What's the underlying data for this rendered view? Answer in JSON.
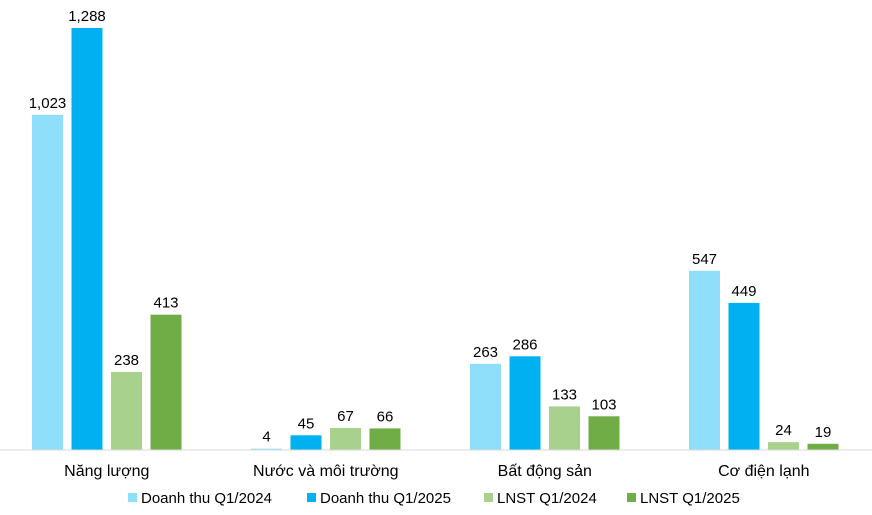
{
  "chart_data": {
    "type": "bar",
    "categories": [
      "Năng lượng",
      "Nước và môi trường",
      "Bất động sản",
      "Cơ điện lạnh"
    ],
    "series": [
      {
        "name": "Doanh thu Q1/2024",
        "color": "#8fdffb",
        "values": [
          1023,
          4,
          263,
          547
        ],
        "labels": [
          "1,023",
          "4",
          "263",
          "547"
        ]
      },
      {
        "name": "Doanh thu Q1/2025",
        "color": "#00b0f0",
        "values": [
          1288,
          45,
          286,
          449
        ],
        "labels": [
          "1,288",
          "45",
          "286",
          "449"
        ]
      },
      {
        "name": "LNST Q1/2024",
        "color": "#a9d18e",
        "values": [
          238,
          67,
          133,
          24
        ],
        "labels": [
          "238",
          "67",
          "133",
          "24"
        ]
      },
      {
        "name": "LNST Q1/2025",
        "color": "#70ad47",
        "values": [
          413,
          66,
          103,
          19
        ],
        "labels": [
          "413",
          "66",
          "103",
          "19"
        ]
      }
    ],
    "ylim": [
      0,
      1300
    ],
    "grid": false,
    "legend_position": "bottom"
  }
}
